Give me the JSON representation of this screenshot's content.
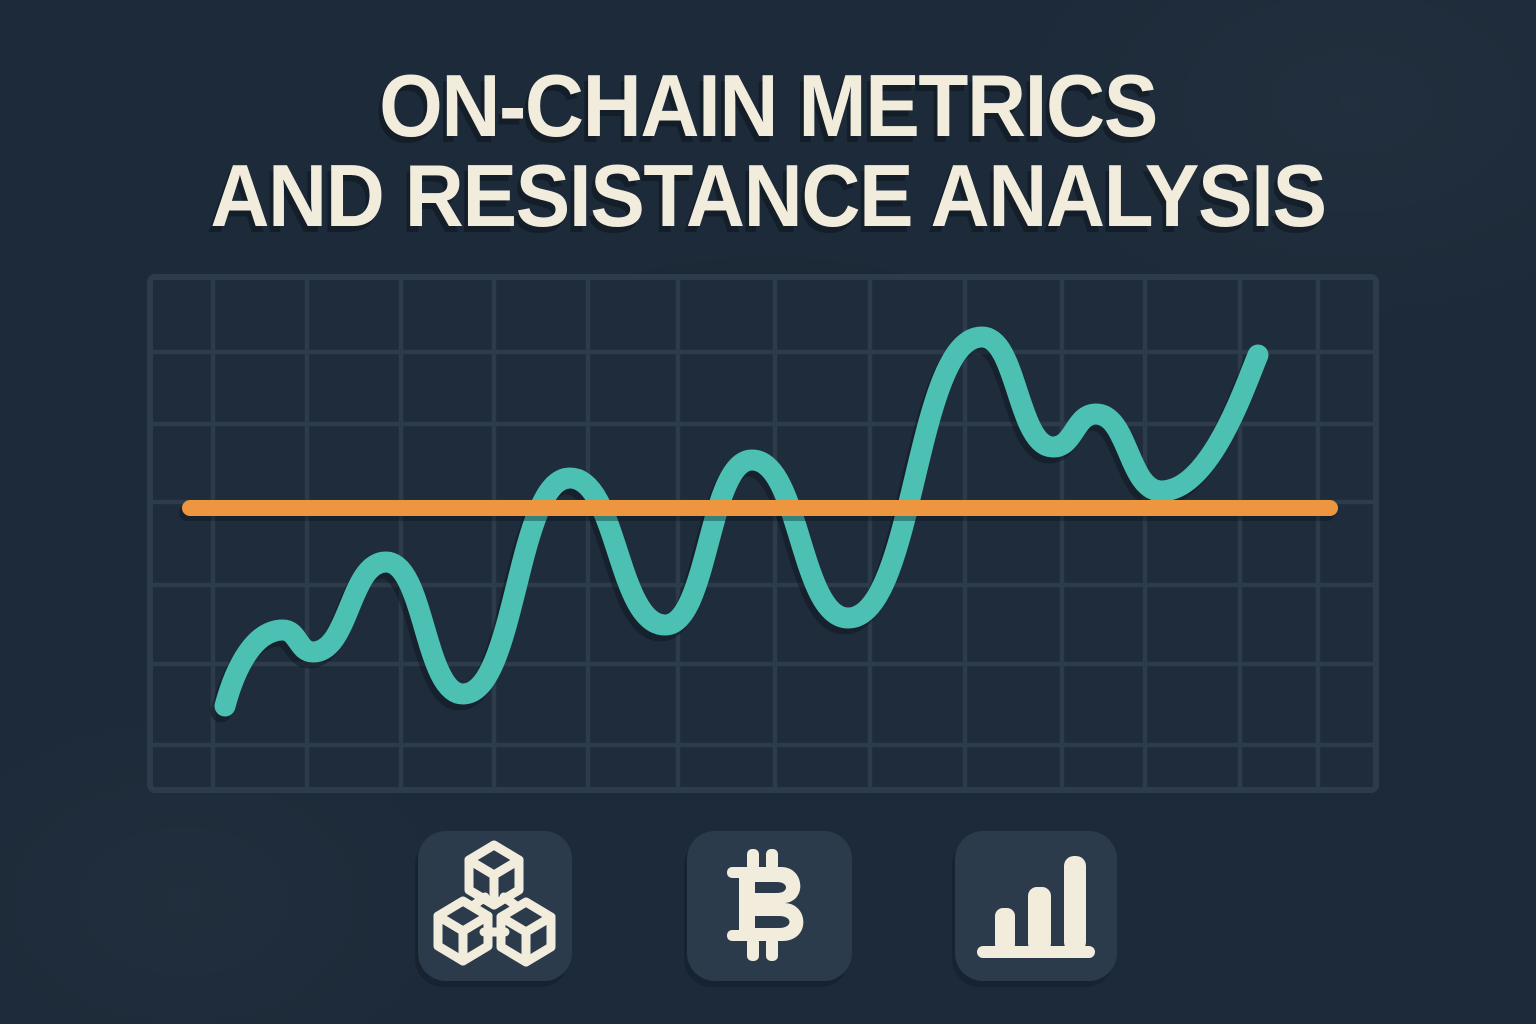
{
  "title": {
    "line1": "ON-CHAIN METRICS",
    "line2": "AND RESISTANCE ANALYSIS"
  },
  "colors": {
    "background": "#1C2A39",
    "grid_line": "#2C3C4B",
    "metric_teal": "#4CC0B3",
    "resistance_orange": "#EE9540",
    "cream": "#F2ECDC",
    "tile": "#2C3B4B"
  },
  "chart_data": {
    "type": "line",
    "title": "On-chain metric vs horizontal resistance level",
    "xlabel": "",
    "ylabel": "",
    "legend": false,
    "grid": {
      "on": true,
      "x_range": [
        150,
        1376
      ],
      "y_range": [
        277,
        790
      ],
      "cols": [
        213,
        307,
        401,
        494,
        588,
        678,
        775,
        870,
        965,
        1062,
        1145,
        1240,
        1318
      ],
      "rows": [
        352,
        424,
        502,
        585,
        664,
        745
      ]
    },
    "series": [
      {
        "name": "on-chain metric line",
        "type": "smooth",
        "color": "#4CC0B3",
        "stroke_width": 21,
        "points": [
          [
            225,
            706
          ],
          [
            283,
            630
          ],
          [
            313,
            652
          ],
          [
            386,
            562
          ],
          [
            463,
            694
          ],
          [
            570,
            478
          ],
          [
            665,
            625
          ],
          [
            752,
            460
          ],
          [
            848,
            618
          ],
          [
            982,
            337
          ],
          [
            1053,
            447
          ],
          [
            1096,
            414
          ],
          [
            1161,
            491
          ],
          [
            1258,
            355
          ]
        ]
      },
      {
        "name": "resistance level line",
        "type": "straight",
        "color": "#EE9540",
        "stroke_width": 16,
        "points": [
          [
            190,
            508
          ],
          [
            1330,
            508
          ]
        ]
      }
    ]
  },
  "icons": {
    "blockchain": "blockchain-cubes-icon",
    "bitcoin": "bitcoin-icon",
    "barchart": "bar-chart-icon"
  }
}
